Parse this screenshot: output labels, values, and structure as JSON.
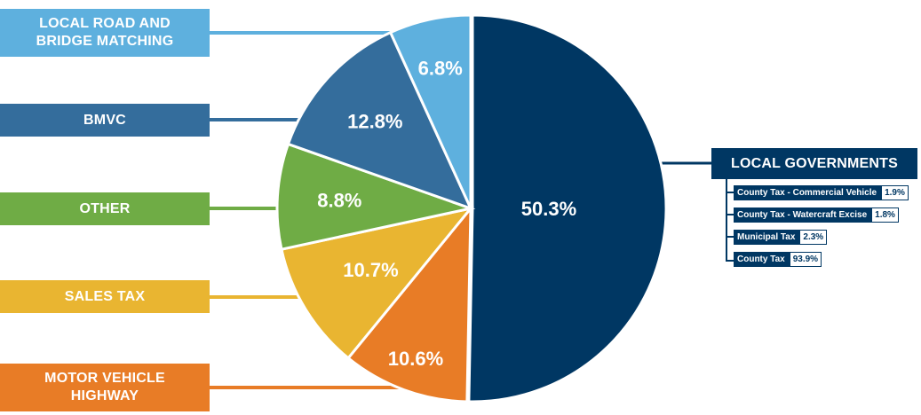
{
  "chart_data": {
    "type": "pie",
    "slices": [
      {
        "label": "LOCAL GOVERNMENTS",
        "value": 50.3,
        "display": "50.3%",
        "color": "#003763"
      },
      {
        "label": "MOTOR VEHICLE\nHIGHWAY",
        "value": 10.6,
        "display": "10.6%",
        "color": "#e87c26"
      },
      {
        "label": "SALES TAX",
        "value": 10.7,
        "display": "10.7%",
        "color": "#e9b531"
      },
      {
        "label": "OTHER",
        "value": 8.8,
        "display": "8.8%",
        "color": "#6fac45"
      },
      {
        "label": "BMVC",
        "value": 12.8,
        "display": "12.8%",
        "color": "#346d9c"
      },
      {
        "label": "LOCAL ROAD AND\nBRIDGE MATCHING",
        "value": 6.8,
        "display": "6.8%",
        "color": "#5eb0de"
      }
    ],
    "local_government_breakdown": [
      {
        "label": "County Tax - Commercial Vehicle",
        "value": "1.9%"
      },
      {
        "label": "County Tax - Watercraft Excise",
        "value": "1.8%"
      },
      {
        "label": "Municipal Tax",
        "value": "2.3%"
      },
      {
        "label": "County Tax",
        "value": "93.9%"
      }
    ]
  }
}
